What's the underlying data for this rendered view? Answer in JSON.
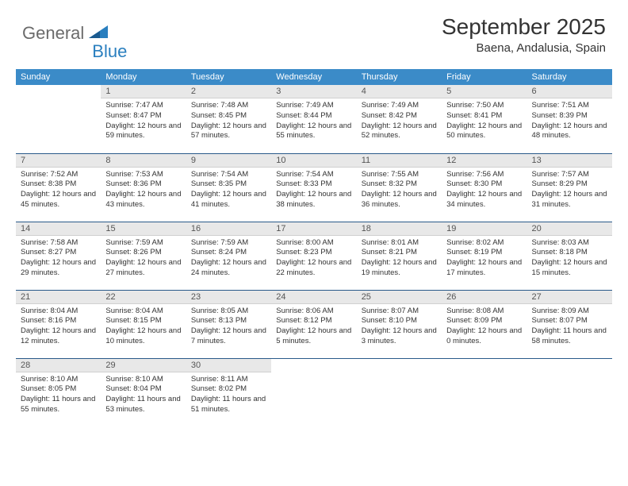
{
  "logo": {
    "text1": "General",
    "text2": "Blue"
  },
  "title": "September 2025",
  "location": "Baena, Andalusia, Spain",
  "colors": {
    "header_bg": "#3b8bc8",
    "header_text": "#ffffff",
    "daynum_bg": "#e8e8e8",
    "row_border": "#2a5a8a",
    "logo_gray": "#6b6b6b",
    "logo_blue": "#2a7fbf"
  },
  "weekdays": [
    "Sunday",
    "Monday",
    "Tuesday",
    "Wednesday",
    "Thursday",
    "Friday",
    "Saturday"
  ],
  "days": [
    {
      "n": 1,
      "sunrise": "7:47 AM",
      "sunset": "8:47 PM",
      "daylight": "12 hours and 59 minutes."
    },
    {
      "n": 2,
      "sunrise": "7:48 AM",
      "sunset": "8:45 PM",
      "daylight": "12 hours and 57 minutes."
    },
    {
      "n": 3,
      "sunrise": "7:49 AM",
      "sunset": "8:44 PM",
      "daylight": "12 hours and 55 minutes."
    },
    {
      "n": 4,
      "sunrise": "7:49 AM",
      "sunset": "8:42 PM",
      "daylight": "12 hours and 52 minutes."
    },
    {
      "n": 5,
      "sunrise": "7:50 AM",
      "sunset": "8:41 PM",
      "daylight": "12 hours and 50 minutes."
    },
    {
      "n": 6,
      "sunrise": "7:51 AM",
      "sunset": "8:39 PM",
      "daylight": "12 hours and 48 minutes."
    },
    {
      "n": 7,
      "sunrise": "7:52 AM",
      "sunset": "8:38 PM",
      "daylight": "12 hours and 45 minutes."
    },
    {
      "n": 8,
      "sunrise": "7:53 AM",
      "sunset": "8:36 PM",
      "daylight": "12 hours and 43 minutes."
    },
    {
      "n": 9,
      "sunrise": "7:54 AM",
      "sunset": "8:35 PM",
      "daylight": "12 hours and 41 minutes."
    },
    {
      "n": 10,
      "sunrise": "7:54 AM",
      "sunset": "8:33 PM",
      "daylight": "12 hours and 38 minutes."
    },
    {
      "n": 11,
      "sunrise": "7:55 AM",
      "sunset": "8:32 PM",
      "daylight": "12 hours and 36 minutes."
    },
    {
      "n": 12,
      "sunrise": "7:56 AM",
      "sunset": "8:30 PM",
      "daylight": "12 hours and 34 minutes."
    },
    {
      "n": 13,
      "sunrise": "7:57 AM",
      "sunset": "8:29 PM",
      "daylight": "12 hours and 31 minutes."
    },
    {
      "n": 14,
      "sunrise": "7:58 AM",
      "sunset": "8:27 PM",
      "daylight": "12 hours and 29 minutes."
    },
    {
      "n": 15,
      "sunrise": "7:59 AM",
      "sunset": "8:26 PM",
      "daylight": "12 hours and 27 minutes."
    },
    {
      "n": 16,
      "sunrise": "7:59 AM",
      "sunset": "8:24 PM",
      "daylight": "12 hours and 24 minutes."
    },
    {
      "n": 17,
      "sunrise": "8:00 AM",
      "sunset": "8:23 PM",
      "daylight": "12 hours and 22 minutes."
    },
    {
      "n": 18,
      "sunrise": "8:01 AM",
      "sunset": "8:21 PM",
      "daylight": "12 hours and 19 minutes."
    },
    {
      "n": 19,
      "sunrise": "8:02 AM",
      "sunset": "8:19 PM",
      "daylight": "12 hours and 17 minutes."
    },
    {
      "n": 20,
      "sunrise": "8:03 AM",
      "sunset": "8:18 PM",
      "daylight": "12 hours and 15 minutes."
    },
    {
      "n": 21,
      "sunrise": "8:04 AM",
      "sunset": "8:16 PM",
      "daylight": "12 hours and 12 minutes."
    },
    {
      "n": 22,
      "sunrise": "8:04 AM",
      "sunset": "8:15 PM",
      "daylight": "12 hours and 10 minutes."
    },
    {
      "n": 23,
      "sunrise": "8:05 AM",
      "sunset": "8:13 PM",
      "daylight": "12 hours and 7 minutes."
    },
    {
      "n": 24,
      "sunrise": "8:06 AM",
      "sunset": "8:12 PM",
      "daylight": "12 hours and 5 minutes."
    },
    {
      "n": 25,
      "sunrise": "8:07 AM",
      "sunset": "8:10 PM",
      "daylight": "12 hours and 3 minutes."
    },
    {
      "n": 26,
      "sunrise": "8:08 AM",
      "sunset": "8:09 PM",
      "daylight": "12 hours and 0 minutes."
    },
    {
      "n": 27,
      "sunrise": "8:09 AM",
      "sunset": "8:07 PM",
      "daylight": "11 hours and 58 minutes."
    },
    {
      "n": 28,
      "sunrise": "8:10 AM",
      "sunset": "8:05 PM",
      "daylight": "11 hours and 55 minutes."
    },
    {
      "n": 29,
      "sunrise": "8:10 AM",
      "sunset": "8:04 PM",
      "daylight": "11 hours and 53 minutes."
    },
    {
      "n": 30,
      "sunrise": "8:11 AM",
      "sunset": "8:02 PM",
      "daylight": "11 hours and 51 minutes."
    }
  ],
  "labels": {
    "sunrise": "Sunrise:",
    "sunset": "Sunset:",
    "daylight": "Daylight:"
  },
  "layout": {
    "start_weekday": 1,
    "rows": 5,
    "cols": 7
  }
}
